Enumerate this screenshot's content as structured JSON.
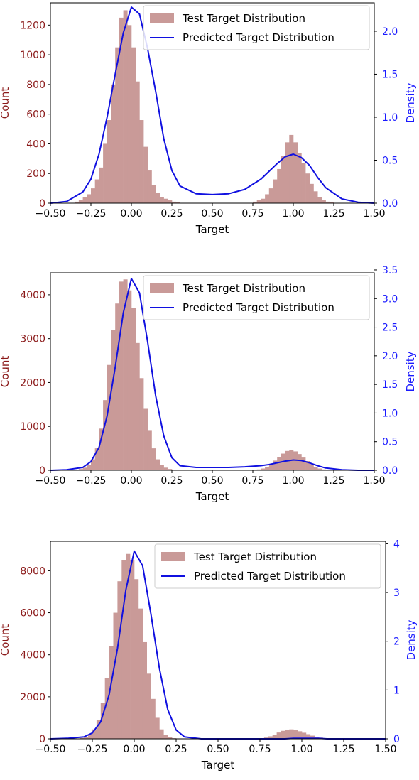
{
  "colors": {
    "bar_fill": "#c99a98",
    "density_line": "#1010e0",
    "count_axis": "#8b1a1a",
    "density_axis": "#1a1aff",
    "frame": "#000000"
  },
  "chart_data": [
    {
      "type": "bar",
      "xlabel": "Target",
      "ylabel_left": "Count",
      "ylabel_right": "Density",
      "xlim": [
        -0.5,
        1.5
      ],
      "ylim_left": [
        0,
        1350
      ],
      "ylim_right": [
        0,
        2.33
      ],
      "x_ticks": [
        "−0.50",
        "−0.25",
        "0.00",
        "0.25",
        "0.50",
        "0.75",
        "1.00",
        "1.25",
        "1.50"
      ],
      "y_ticks_left": [
        "0",
        "200",
        "400",
        "600",
        "800",
        "1000",
        "1200"
      ],
      "y_ticks_right": [
        "0.0",
        "0.5",
        "1.0",
        "1.5",
        "2.0"
      ],
      "legend": {
        "position": "top-right",
        "entries": [
          "Test Target Distribution",
          "Predicted Target Distribution"
        ]
      },
      "series": [
        {
          "name": "Test Target Distribution",
          "kind": "histogram",
          "bin_start": -0.35,
          "bin_width": 0.025,
          "values": [
            10,
            20,
            40,
            60,
            100,
            160,
            240,
            400,
            560,
            800,
            1050,
            1250,
            1300,
            1200,
            1050,
            820,
            560,
            380,
            220,
            120,
            70,
            40,
            30,
            20,
            10,
            5,
            0,
            0,
            0,
            0,
            0,
            0,
            0,
            0,
            0,
            0,
            0,
            0,
            0,
            0,
            0,
            0,
            0,
            0,
            10,
            20,
            30,
            60,
            100,
            160,
            230,
            320,
            410,
            460,
            410,
            340,
            270,
            200,
            130,
            80,
            40,
            20,
            10,
            5
          ]
        },
        {
          "name": "Predicted Target Distribution",
          "kind": "line",
          "x": [
            -0.5,
            -0.4,
            -0.3,
            -0.25,
            -0.2,
            -0.15,
            -0.1,
            -0.05,
            0.0,
            0.05,
            0.1,
            0.15,
            0.2,
            0.25,
            0.3,
            0.4,
            0.5,
            0.6,
            0.7,
            0.8,
            0.85,
            0.9,
            0.95,
            1.0,
            1.05,
            1.1,
            1.15,
            1.2,
            1.3,
            1.4,
            1.5
          ],
          "y": [
            0.0,
            0.02,
            0.13,
            0.28,
            0.57,
            1.0,
            1.5,
            1.98,
            2.28,
            2.2,
            1.8,
            1.3,
            0.75,
            0.38,
            0.2,
            0.11,
            0.1,
            0.11,
            0.16,
            0.28,
            0.37,
            0.46,
            0.54,
            0.57,
            0.53,
            0.44,
            0.3,
            0.18,
            0.05,
            0.01,
            0.0
          ]
        }
      ]
    },
    {
      "type": "bar",
      "xlabel": "Target",
      "ylabel_left": "Count",
      "ylabel_right": "Density",
      "xlim": [
        -0.5,
        1.5
      ],
      "ylim_left": [
        0,
        4500
      ],
      "ylim_right": [
        0,
        3.45
      ],
      "x_ticks": [
        "−0.50",
        "−0.25",
        "0.00",
        "0.25",
        "0.50",
        "0.75",
        "1.00",
        "1.25",
        "1.50"
      ],
      "y_ticks_left": [
        "0",
        "1000",
        "2000",
        "3000",
        "4000"
      ],
      "y_ticks_right": [
        "0.0",
        "0.5",
        "1.0",
        "1.5",
        "2.0",
        "2.5",
        "3.0",
        "3.5"
      ],
      "legend": {
        "position": "top-right",
        "entries": [
          "Test Target Distribution",
          "Predicted Target Distribution"
        ]
      },
      "series": [
        {
          "name": "Test Target Distribution",
          "kind": "histogram",
          "bin_start": -0.35,
          "bin_width": 0.025,
          "values": [
            10,
            30,
            60,
            120,
            250,
            500,
            950,
            1600,
            2400,
            3200,
            3800,
            4300,
            4350,
            4100,
            3700,
            2900,
            2100,
            1400,
            900,
            500,
            250,
            120,
            60,
            30,
            15,
            10,
            5,
            0,
            0,
            0,
            0,
            0,
            0,
            0,
            0,
            0,
            0,
            0,
            0,
            0,
            0,
            0,
            0,
            0,
            10,
            20,
            40,
            80,
            140,
            220,
            300,
            380,
            440,
            460,
            430,
            370,
            290,
            210,
            140,
            80,
            40,
            20,
            10,
            5
          ]
        },
        {
          "name": "Predicted Target Distribution",
          "kind": "line",
          "x": [
            -0.5,
            -0.4,
            -0.3,
            -0.25,
            -0.2,
            -0.15,
            -0.1,
            -0.05,
            0.0,
            0.05,
            0.1,
            0.15,
            0.2,
            0.25,
            0.3,
            0.4,
            0.5,
            0.6,
            0.7,
            0.8,
            0.85,
            0.9,
            0.95,
            1.0,
            1.05,
            1.1,
            1.15,
            1.2,
            1.3,
            1.4,
            1.5
          ],
          "y": [
            0.0,
            0.01,
            0.05,
            0.15,
            0.4,
            0.95,
            1.8,
            2.75,
            3.35,
            3.1,
            2.25,
            1.3,
            0.6,
            0.22,
            0.08,
            0.05,
            0.05,
            0.05,
            0.06,
            0.08,
            0.1,
            0.13,
            0.16,
            0.18,
            0.17,
            0.13,
            0.08,
            0.04,
            0.01,
            0.0,
            0.0
          ]
        }
      ]
    },
    {
      "type": "bar",
      "xlabel": "Target",
      "ylabel_left": "Count",
      "ylabel_right": "Density",
      "xlim": [
        -0.5,
        1.5
      ],
      "ylim_left": [
        0,
        9400
      ],
      "ylim_right": [
        0,
        4.05
      ],
      "x_ticks": [
        "−0.50",
        "−0.25",
        "0.00",
        "0.25",
        "0.50",
        "0.75",
        "1.00",
        "1.25",
        "1.50"
      ],
      "y_ticks_left": [
        "0",
        "2000",
        "4000",
        "6000",
        "8000"
      ],
      "y_ticks_right": [
        "0",
        "1",
        "2",
        "3",
        "4"
      ],
      "legend": {
        "position": "top-right",
        "entries": [
          "Test Target Distribution",
          "Predicted Target Distribution"
        ]
      },
      "series": [
        {
          "name": "Test Target Distribution",
          "kind": "histogram",
          "bin_start": -0.35,
          "bin_width": 0.025,
          "values": [
            10,
            40,
            100,
            220,
            450,
            900,
            1700,
            2900,
            4400,
            6000,
            7500,
            8500,
            8800,
            8500,
            7600,
            6200,
            4600,
            3100,
            1900,
            1000,
            450,
            180,
            70,
            30,
            10,
            5,
            0,
            0,
            0,
            0,
            0,
            0,
            0,
            0,
            0,
            0,
            0,
            0,
            0,
            0,
            0,
            0,
            0,
            0,
            20,
            60,
            120,
            200,
            300,
            380,
            440,
            450,
            420,
            360,
            290,
            220,
            150,
            100,
            60,
            30,
            15,
            5,
            0,
            0
          ]
        },
        {
          "name": "Predicted Target Distribution",
          "kind": "line",
          "x": [
            -0.5,
            -0.4,
            -0.3,
            -0.25,
            -0.2,
            -0.15,
            -0.1,
            -0.05,
            0.0,
            0.05,
            0.1,
            0.15,
            0.2,
            0.25,
            0.3,
            0.4,
            0.5,
            0.6,
            0.7,
            0.8,
            0.85,
            0.9,
            0.95,
            1.0,
            1.05,
            1.1,
            1.15,
            1.2,
            1.3,
            1.4,
            1.5
          ],
          "y": [
            0.0,
            0.01,
            0.04,
            0.12,
            0.35,
            0.9,
            1.85,
            3.05,
            3.85,
            3.55,
            2.55,
            1.45,
            0.6,
            0.18,
            0.04,
            0.0,
            0.0,
            0.0,
            0.0,
            0.0,
            0.0,
            0.0,
            0.01,
            0.01,
            0.01,
            0.01,
            0.0,
            0.0,
            0.0,
            0.0,
            0.0
          ]
        }
      ]
    }
  ]
}
